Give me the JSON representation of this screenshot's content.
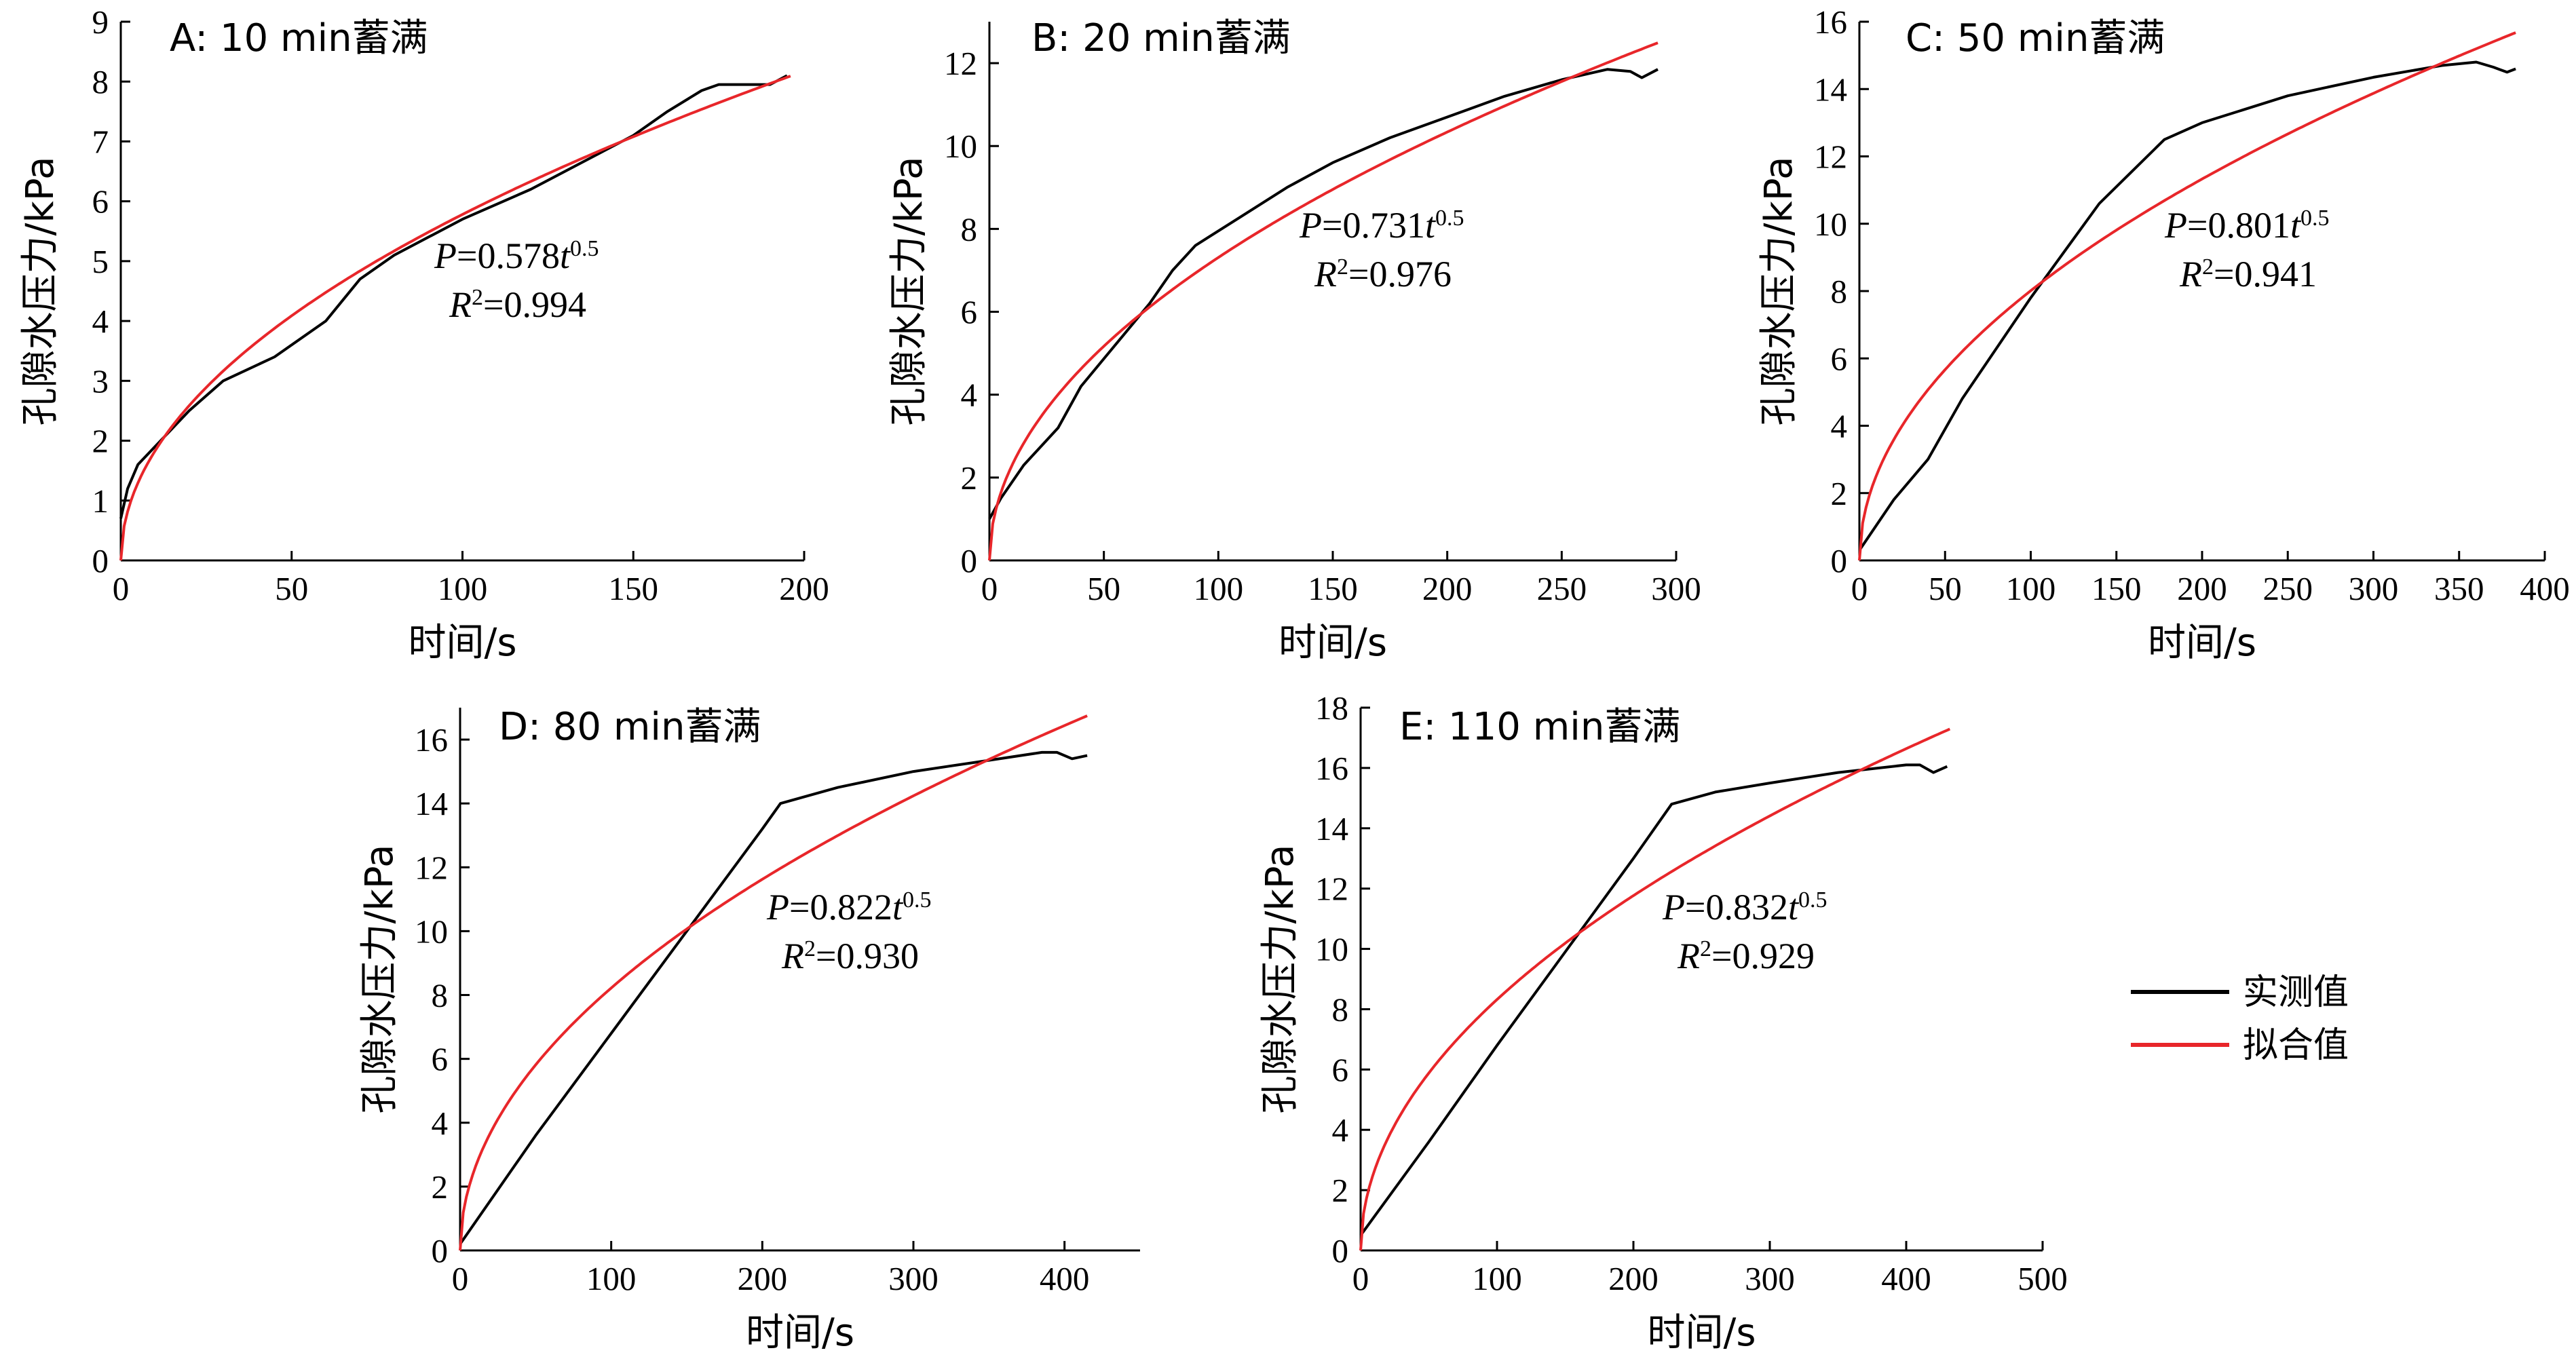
{
  "legend": {
    "measured": "实测值",
    "fitted": "拟合值",
    "measured_color": "#000000",
    "fitted_color": "#e8262a"
  },
  "chart_data": [
    {
      "type": "line",
      "title": "A: 10 min蓄满",
      "xlabel": "时间/s",
      "ylabel": "孔隙水压力/kPa",
      "xlim": [
        0,
        200
      ],
      "ylim": [
        0,
        9
      ],
      "xticks": [
        0,
        50,
        100,
        150,
        200
      ],
      "yticks": [
        0,
        1,
        2,
        3,
        4,
        5,
        6,
        7,
        8,
        9
      ],
      "equation": {
        "prefix": "P",
        "coef": "=0.578",
        "var": "t",
        "exp": "0.5",
        "r2_prefix": "R",
        "r2_exp": "2",
        "r2_value": "=0.994"
      },
      "series": [
        {
          "name": "实测值",
          "x": [
            0,
            2,
            5,
            10,
            20,
            30,
            45,
            60,
            70,
            80,
            100,
            120,
            140,
            150,
            160,
            170,
            175,
            180,
            185,
            190,
            195
          ],
          "y": [
            0.7,
            1.2,
            1.6,
            1.9,
            2.5,
            3.0,
            3.4,
            4.0,
            4.7,
            5.1,
            5.7,
            6.2,
            6.8,
            7.1,
            7.5,
            7.85,
            7.95,
            7.95,
            7.95,
            7.95,
            8.1
          ]
        },
        {
          "name": "拟合值",
          "fit": {
            "a": 0.578,
            "b": 0.5,
            "xmin": 0,
            "xmax": 196
          }
        }
      ]
    },
    {
      "type": "line",
      "title": "B: 20 min蓄满",
      "xlabel": "时间/s",
      "ylabel": "孔隙水压力/kPa",
      "xlim": [
        0,
        300
      ],
      "ylim": [
        0,
        13
      ],
      "xticks": [
        0,
        50,
        100,
        150,
        200,
        250,
        300
      ],
      "yticks": [
        0,
        2,
        4,
        6,
        8,
        10,
        12
      ],
      "equation": {
        "prefix": "P",
        "coef": "=0.731",
        "var": "t",
        "exp": "0.5",
        "r2_prefix": "R",
        "r2_exp": "2",
        "r2_value": "=0.976"
      },
      "series": [
        {
          "name": "实测值",
          "x": [
            0,
            5,
            15,
            30,
            40,
            55,
            70,
            80,
            90,
            110,
            130,
            150,
            175,
            200,
            225,
            250,
            270,
            280,
            285,
            292
          ],
          "y": [
            1.0,
            1.5,
            2.3,
            3.2,
            4.2,
            5.2,
            6.2,
            7.0,
            7.6,
            8.3,
            9.0,
            9.6,
            10.2,
            10.7,
            11.2,
            11.6,
            11.85,
            11.8,
            11.65,
            11.85
          ]
        },
        {
          "name": "拟合值",
          "fit": {
            "a": 0.731,
            "b": 0.5,
            "xmin": 0,
            "xmax": 292
          }
        }
      ]
    },
    {
      "type": "line",
      "title": "C: 50 min蓄满",
      "xlabel": "时间/s",
      "ylabel": "孔隙水压力/kPa",
      "xlim": [
        0,
        400
      ],
      "ylim": [
        0,
        16
      ],
      "xticks": [
        0,
        50,
        100,
        150,
        200,
        250,
        300,
        350,
        400
      ],
      "yticks": [
        0,
        2,
        4,
        6,
        8,
        10,
        12,
        14,
        16
      ],
      "equation": {
        "prefix": "P",
        "coef": "=0.801",
        "var": "t",
        "exp": "0.5",
        "r2_prefix": "R",
        "r2_exp": "2",
        "r2_value": "=0.941"
      },
      "series": [
        {
          "name": "实测值",
          "x": [
            0,
            20,
            40,
            60,
            100,
            140,
            178,
            200,
            250,
            300,
            340,
            360,
            370,
            378,
            383
          ],
          "y": [
            0.3,
            1.8,
            3.0,
            4.8,
            7.8,
            10.6,
            12.5,
            13.0,
            13.8,
            14.35,
            14.7,
            14.8,
            14.65,
            14.5,
            14.6
          ]
        },
        {
          "name": "拟合值",
          "fit": {
            "a": 0.801,
            "b": 0.5,
            "xmin": 0,
            "xmax": 383
          }
        }
      ]
    },
    {
      "type": "line",
      "title": "D: 80 min蓄满",
      "xlabel": "时间/s",
      "ylabel": "孔隙水压力/kPa",
      "xlim": [
        0,
        450
      ],
      "ylim": [
        0,
        17
      ],
      "xticks": [
        0,
        100,
        200,
        300,
        400
      ],
      "yticks": [
        0,
        2,
        4,
        6,
        8,
        10,
        12,
        14,
        16
      ],
      "equation": {
        "prefix": "P",
        "coef": "=0.822",
        "var": "t",
        "exp": "0.5",
        "r2_prefix": "R",
        "r2_exp": "2",
        "r2_value": "=0.930"
      },
      "series": [
        {
          "name": "实测值",
          "x": [
            0,
            50,
            100,
            150,
            200,
            212,
            250,
            300,
            350,
            385,
            395,
            405,
            415
          ],
          "y": [
            0.2,
            3.6,
            6.8,
            10.0,
            13.2,
            14.0,
            14.5,
            15.0,
            15.35,
            15.6,
            15.6,
            15.4,
            15.5
          ]
        },
        {
          "name": "拟合值",
          "fit": {
            "a": 0.822,
            "b": 0.5,
            "xmin": 0,
            "xmax": 415
          }
        }
      ]
    },
    {
      "type": "line",
      "title": "E: 110 min蓄满",
      "xlabel": "时间/s",
      "ylabel": "孔隙水压力/kPa",
      "xlim": [
        0,
        500
      ],
      "ylim": [
        0,
        18
      ],
      "xticks": [
        0,
        100,
        200,
        300,
        400,
        500
      ],
      "yticks": [
        0,
        2,
        4,
        6,
        8,
        10,
        12,
        14,
        16,
        18
      ],
      "equation": {
        "prefix": "P",
        "coef": "=0.832",
        "var": "t",
        "exp": "0.5",
        "r2_prefix": "R",
        "r2_exp": "2",
        "r2_value": "=0.929"
      },
      "series": [
        {
          "name": "实测值",
          "x": [
            0,
            50,
            100,
            150,
            200,
            228,
            260,
            300,
            350,
            400,
            410,
            420,
            430
          ],
          "y": [
            0.5,
            3.6,
            6.8,
            9.9,
            13.0,
            14.8,
            15.2,
            15.5,
            15.85,
            16.1,
            16.1,
            15.85,
            16.05
          ]
        },
        {
          "name": "拟合值",
          "fit": {
            "a": 0.832,
            "b": 0.5,
            "xmin": 0,
            "xmax": 432
          }
        }
      ]
    }
  ]
}
